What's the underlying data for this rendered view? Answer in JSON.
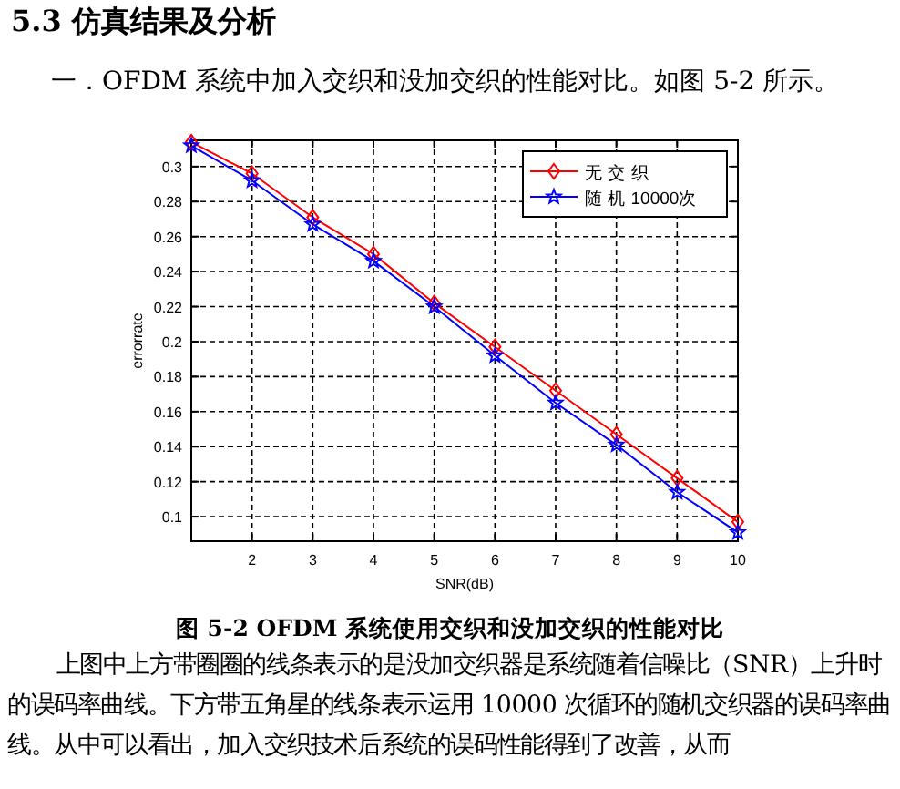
{
  "chart_data": {
    "type": "line",
    "title": "图 5-2  OFDM 系统使用交织和没加交织的性能对比",
    "xlabel": "SNR(dB)",
    "ylabel": "errorrate",
    "annotations": [
      "5.3  仿真结果及分析",
      "一．OFDM 系统中加入交织和没加交织的性能对比。如图 5-2 所示。",
      "上图中上方带圈圈的线条表示的是没加交织器是系统随着信噪比（SNR）上升时的误码率曲线。下方带五角星的线条表示运用 10000 次循环的随机交织器的误码率曲线。从中可以看出，加入交织技术后系统的误码性能得到了改善，从而"
    ],
    "x": [
      1,
      2,
      3,
      4,
      5,
      6,
      7,
      8,
      9,
      10
    ],
    "series": [
      {
        "name": "无 交 织",
        "color": "#ff0000",
        "marker": "diamond",
        "values": [
          0.314,
          0.296,
          0.271,
          0.25,
          0.222,
          0.197,
          0.172,
          0.147,
          0.122,
          0.097
        ]
      },
      {
        "name": "随 机 10000次",
        "color": "#0000ff",
        "marker": "star",
        "values": [
          0.312,
          0.292,
          0.267,
          0.246,
          0.22,
          0.192,
          0.165,
          0.141,
          0.114,
          0.091
        ]
      }
    ],
    "xlim": [
      1,
      10
    ],
    "ylim": [
      0.086,
      0.315
    ],
    "xticks": [
      {
        "value": 1,
        "label": null
      },
      2,
      3,
      4,
      5,
      6,
      7,
      8,
      9,
      10
    ],
    "yticks": [
      0.1,
      0.12,
      0.14,
      0.16,
      0.18,
      0.2,
      0.22,
      0.24,
      0.26,
      0.28,
      0.3
    ],
    "grid": true,
    "legend": "top right",
    "line_style": "solid"
  }
}
